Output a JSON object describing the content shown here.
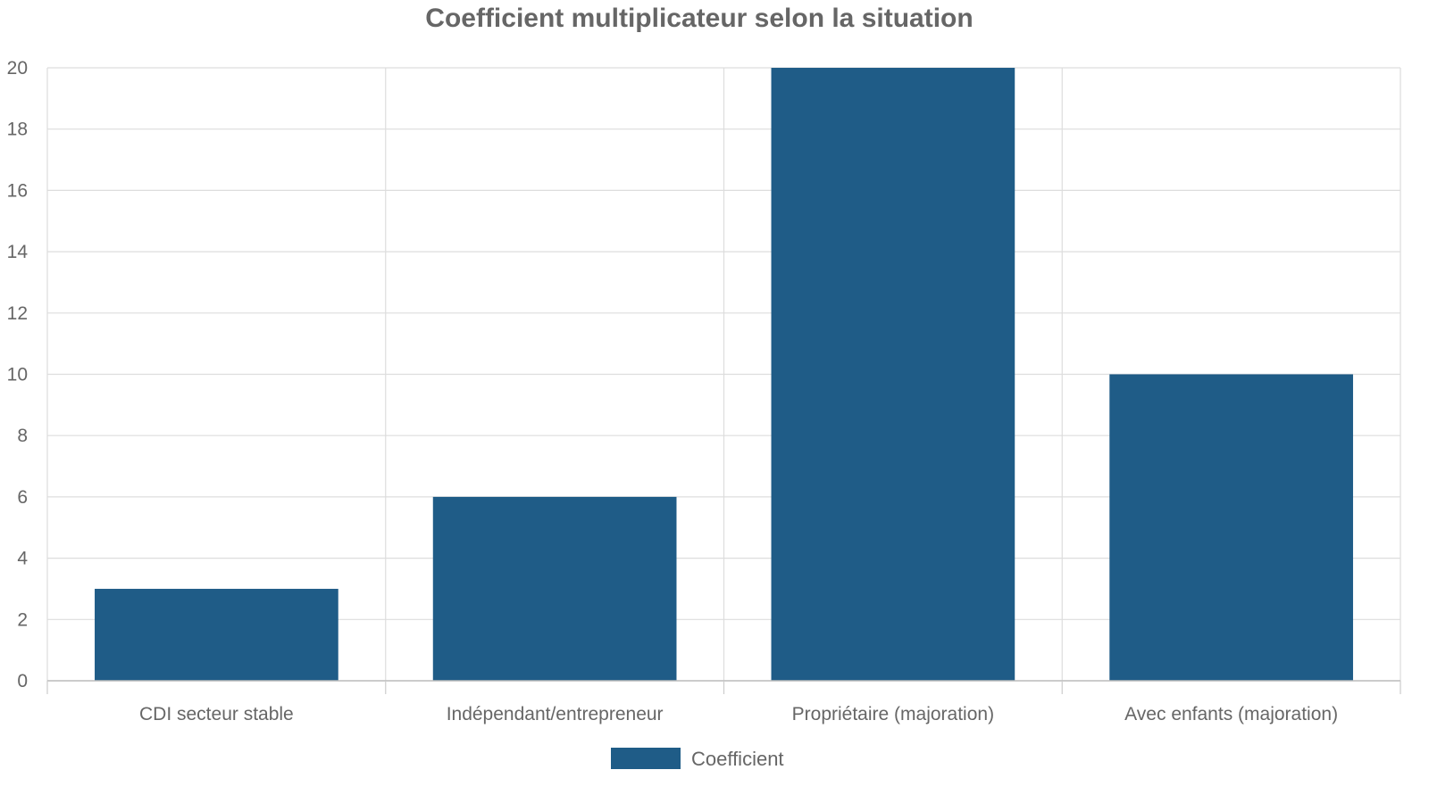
{
  "chart_data": {
    "type": "bar",
    "title": "Coefficient multiplicateur selon la situation",
    "xlabel": "",
    "ylabel": "",
    "categories": [
      "CDI secteur stable",
      "Indépendant/entrepreneur",
      "Propriétaire (majoration)",
      "Avec enfants (majoration)"
    ],
    "series": [
      {
        "name": "Coefficient",
        "values": [
          3,
          6,
          20,
          10
        ],
        "color": "#1f5c87"
      }
    ],
    "ylim": [
      0,
      20
    ],
    "yticks": [
      0,
      2,
      4,
      6,
      8,
      10,
      12,
      14,
      16,
      18,
      20
    ],
    "grid": true,
    "legend_position": "bottom-center"
  }
}
